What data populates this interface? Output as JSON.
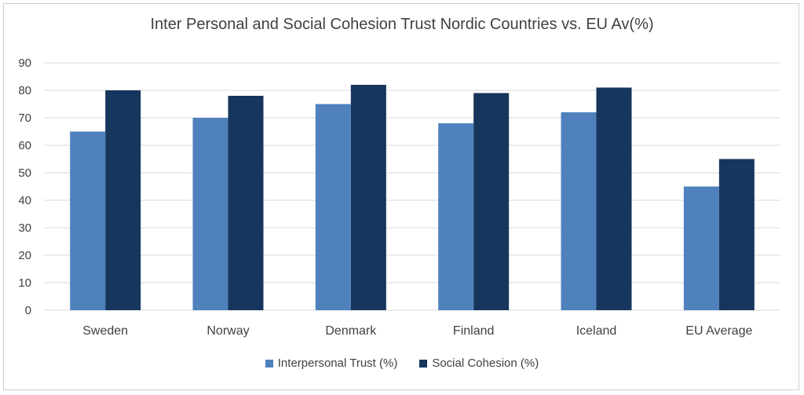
{
  "chart_data": {
    "type": "bar",
    "title": "Inter Personal and Social Cohesion Trust Nordic Countries vs. EU Av(%)",
    "categories": [
      "Sweden",
      "Norway",
      "Denmark",
      "Finland",
      "Iceland",
      "EU Average"
    ],
    "series": [
      {
        "name": "Interpersonal Trust (%)",
        "color": "#4f81bd",
        "values": [
          65,
          70,
          75,
          68,
          72,
          45
        ]
      },
      {
        "name": "Social Cohesion (%)",
        "color": "#17365d",
        "values": [
          80,
          78,
          82,
          79,
          81,
          55
        ]
      }
    ],
    "ylim": [
      0,
      90
    ],
    "yticks": [
      0,
      10,
      20,
      30,
      40,
      50,
      60,
      70,
      80,
      90
    ],
    "grid": true,
    "legend": "bottom"
  }
}
